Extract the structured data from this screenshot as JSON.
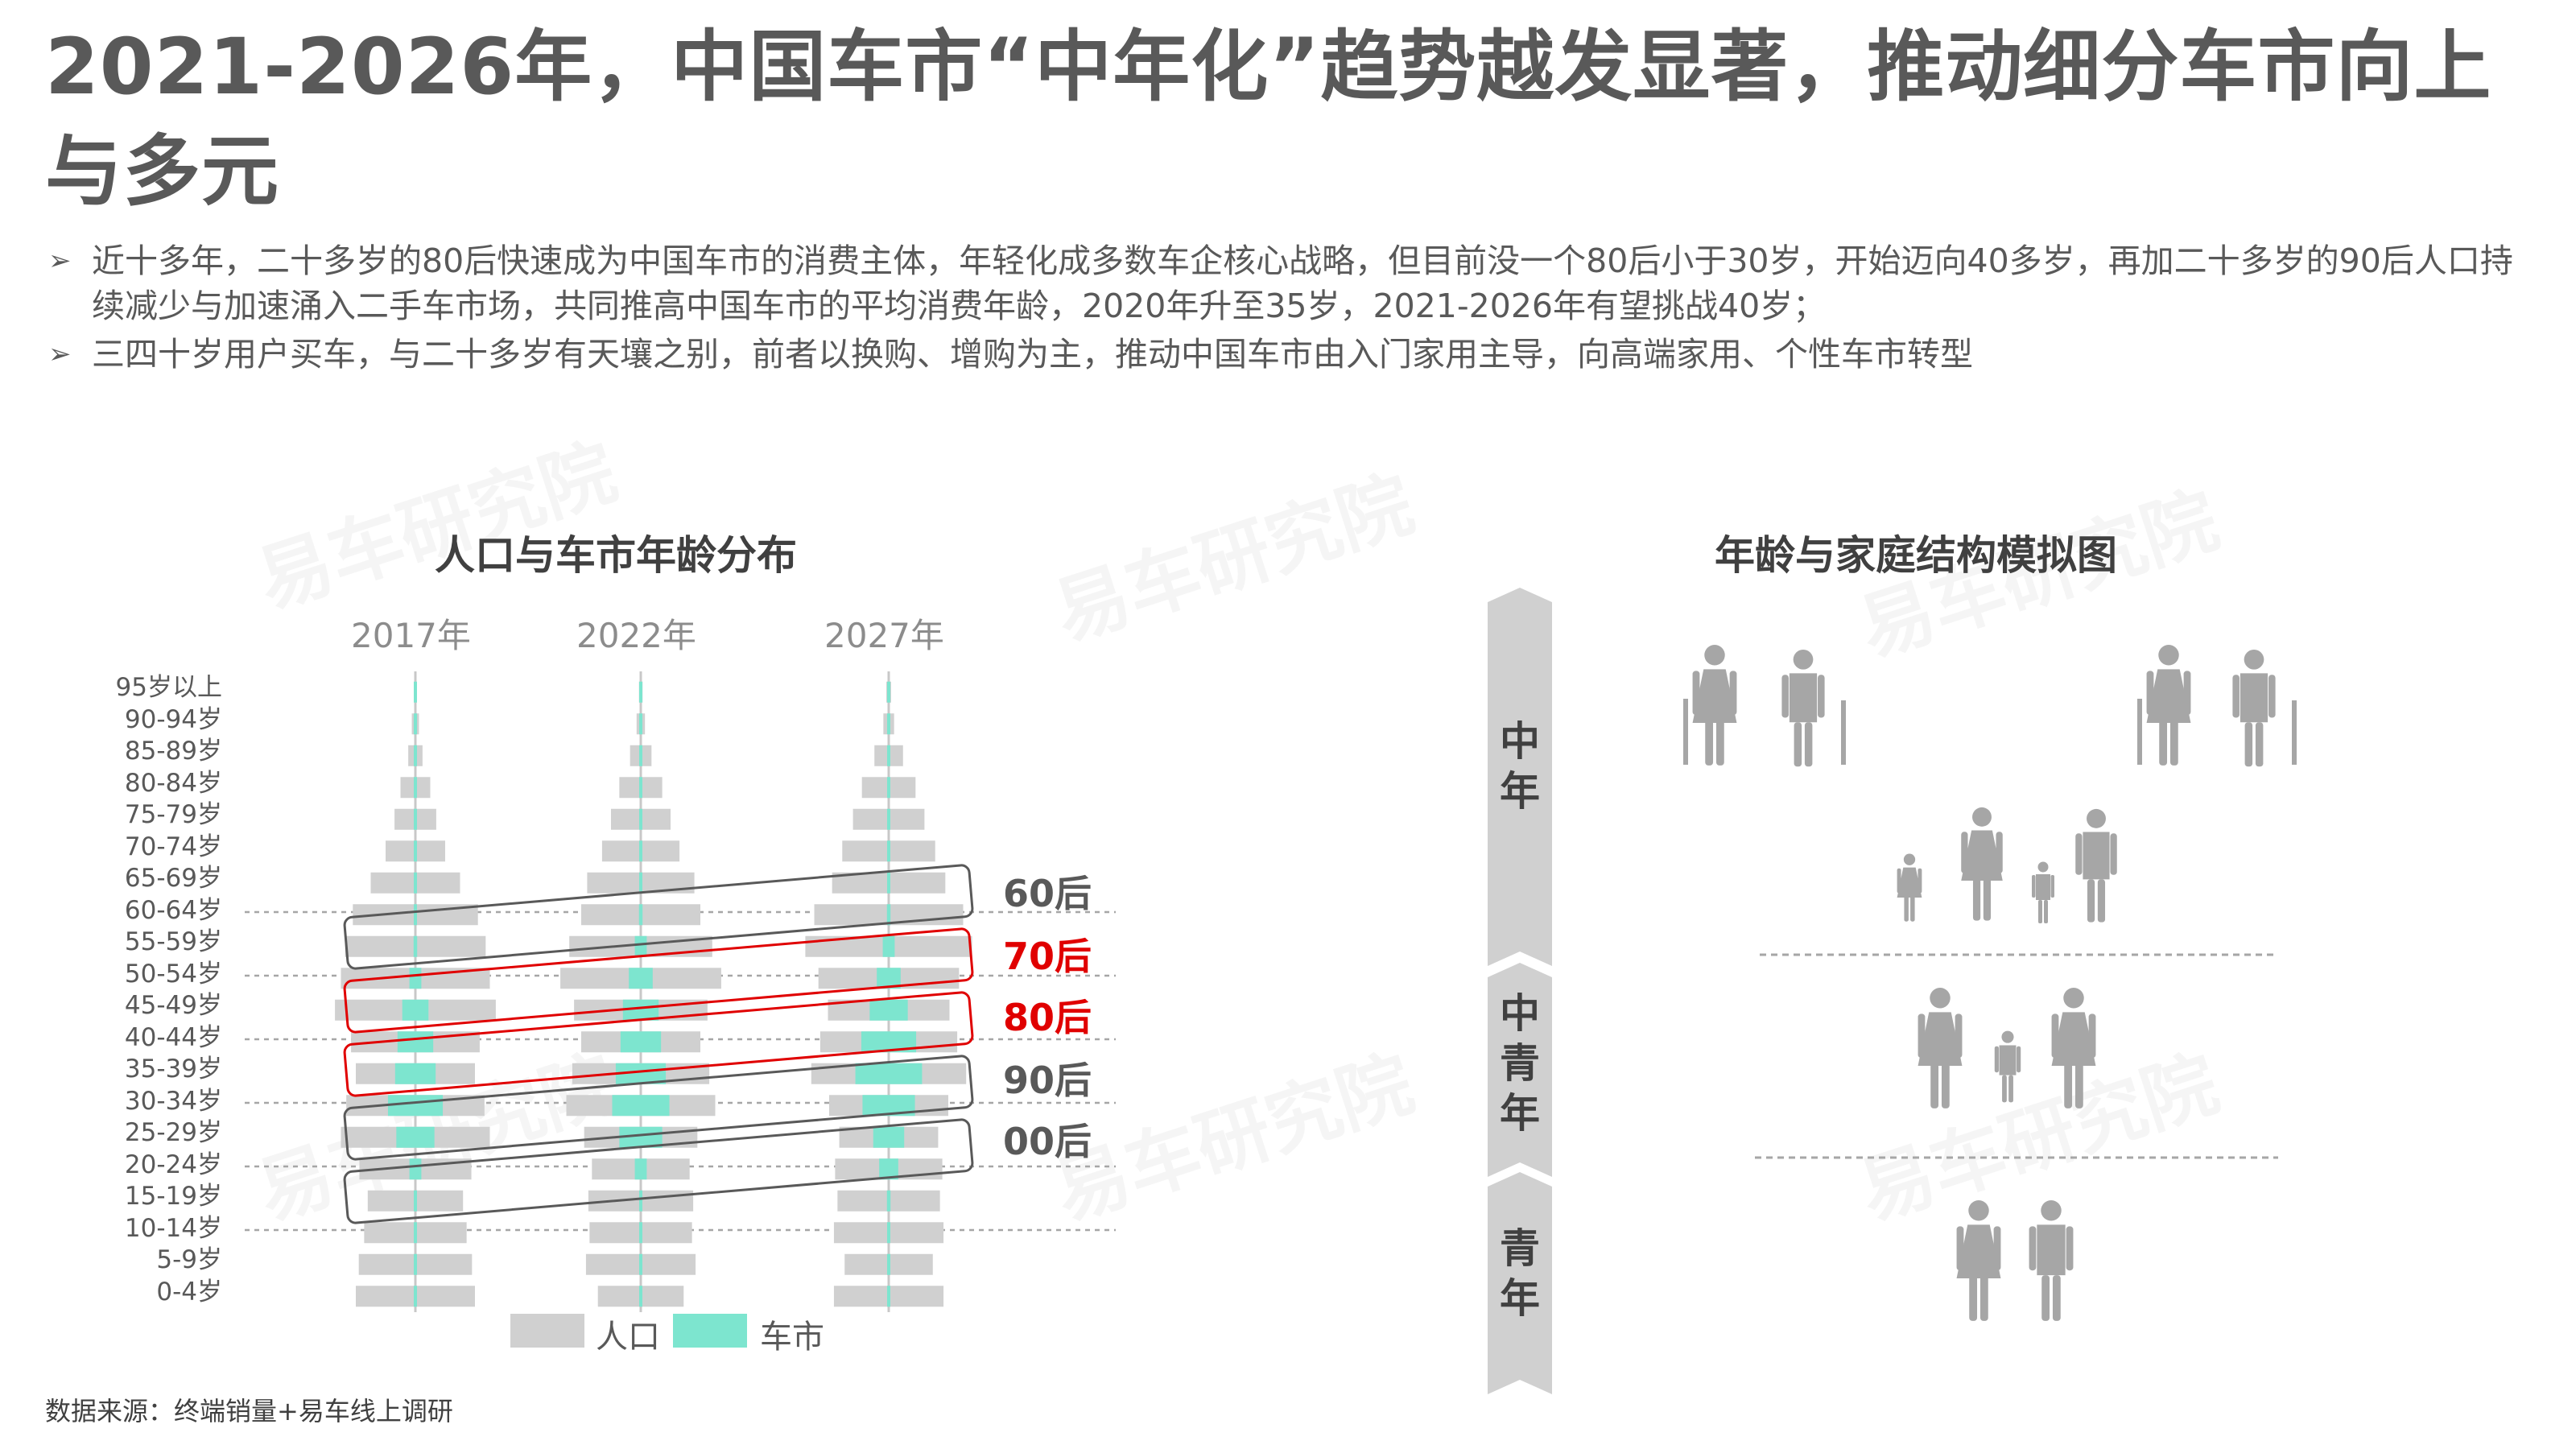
{
  "title": "2021-2026年，中国车市“中年化”趋势越发显著，推动细分车市向上与多元",
  "bullets": [
    "近十多年，二十多岁的80后快速成为中国车市的消费主体，年轻化成多数车企核心战略，但目前没一个80后小于30岁，开始迈向40多岁，再加二十多岁的90后人口持续减少与加速涌入二手车市场，共同推高中国车市的平均消费年龄，2020年升至35岁，2021-2026年有望挑战40岁；",
    "三四十岁用户买车，与二十多岁有天壤之别，前者以换购、增购为主，推动中国车市由入门家用主导，向高端家用、个性车市转型"
  ],
  "bullet_icon": "arrow-bullet-icon",
  "watermark": "易车研究院",
  "source": "数据来源：终端销量+易车线上调研",
  "colors": {
    "population": "#d0d0d0",
    "car_market": "#7de5cf",
    "highlight_red": "#e00000",
    "dark_gray": "#595959",
    "stage_bar": "#d0d0d0",
    "figure": "#a6a6a6"
  },
  "left_panel": {
    "title": "人口与车市年龄分布",
    "legend": {
      "population": "人口",
      "car_market": "车市"
    }
  },
  "right_panel": {
    "title": "年龄与家庭结构模拟图",
    "stages": [
      "中年",
      "中青年",
      "青年"
    ],
    "icons": [
      "elderly-couple-icon",
      "elderly-couple-icon",
      "family-with-children-icon",
      "parents-with-child-icon",
      "young-couple-icon"
    ]
  },
  "chart_data": {
    "type": "bar",
    "subtype": "population-pyramid",
    "title": "人口与车市年龄分布",
    "categories": [
      "95岁以上",
      "90-94岁",
      "85-89岁",
      "80-84岁",
      "75-79岁",
      "70-74岁",
      "65-69岁",
      "60-64岁",
      "55-59岁",
      "50-54岁",
      "45-49岁",
      "40-44岁",
      "35-39岁",
      "30-34岁",
      "25-29岁",
      "20-24岁",
      "15-19岁",
      "10-14岁",
      "5-9岁",
      "0-4岁"
    ],
    "panels": [
      {
        "name": "2017年",
        "population": [
          0.2,
          0.6,
          1.2,
          2.5,
          3.5,
          5.0,
          7.5,
          10.5,
          11.8,
          12.5,
          13.5,
          10.8,
          10.0,
          11.6,
          12.5,
          9.4,
          8.0,
          8.6,
          9.5,
          10.0
        ],
        "car_market": [
          0,
          0,
          0,
          0,
          0,
          0,
          0,
          0,
          0.3,
          1.0,
          2.2,
          3.0,
          3.4,
          4.6,
          3.2,
          1.0,
          0,
          0,
          0,
          0
        ]
      },
      {
        "name": "2022年",
        "population": [
          0.3,
          0.7,
          1.8,
          3.6,
          5.0,
          6.5,
          9.0,
          10.0,
          12.0,
          13.5,
          11.2,
          10.0,
          11.5,
          12.5,
          9.5,
          8.2,
          8.8,
          8.6,
          9.2,
          7.2
        ],
        "car_market": [
          0,
          0,
          0,
          0,
          0,
          0,
          0,
          0.3,
          1.0,
          2.0,
          3.0,
          3.4,
          4.2,
          4.8,
          3.6,
          1.0,
          0,
          0,
          0,
          0
        ]
      },
      {
        "name": "2027年",
        "population": [
          0.4,
          0.9,
          2.4,
          4.5,
          6.0,
          7.8,
          9.5,
          12.5,
          14.0,
          11.8,
          10.2,
          11.5,
          13.0,
          10.0,
          8.3,
          9.0,
          8.6,
          9.2,
          7.4,
          9.2
        ],
        "car_market": [
          0,
          0,
          0,
          0,
          0,
          0,
          0,
          0.3,
          1.0,
          2.0,
          3.2,
          4.6,
          5.6,
          4.4,
          2.6,
          1.6,
          0.3,
          0,
          0,
          0
        ]
      }
    ],
    "cohorts": [
      {
        "label": "60后",
        "color": "#595959",
        "highlight": false
      },
      {
        "label": "70后",
        "color": "#e00000",
        "highlight": true
      },
      {
        "label": "80后",
        "color": "#e00000",
        "highlight": true
      },
      {
        "label": "90后",
        "color": "#595959",
        "highlight": false
      },
      {
        "label": "00后",
        "color": "#595959",
        "highlight": false
      }
    ],
    "grid": "dashed horizontal",
    "legend_position": "bottom"
  }
}
